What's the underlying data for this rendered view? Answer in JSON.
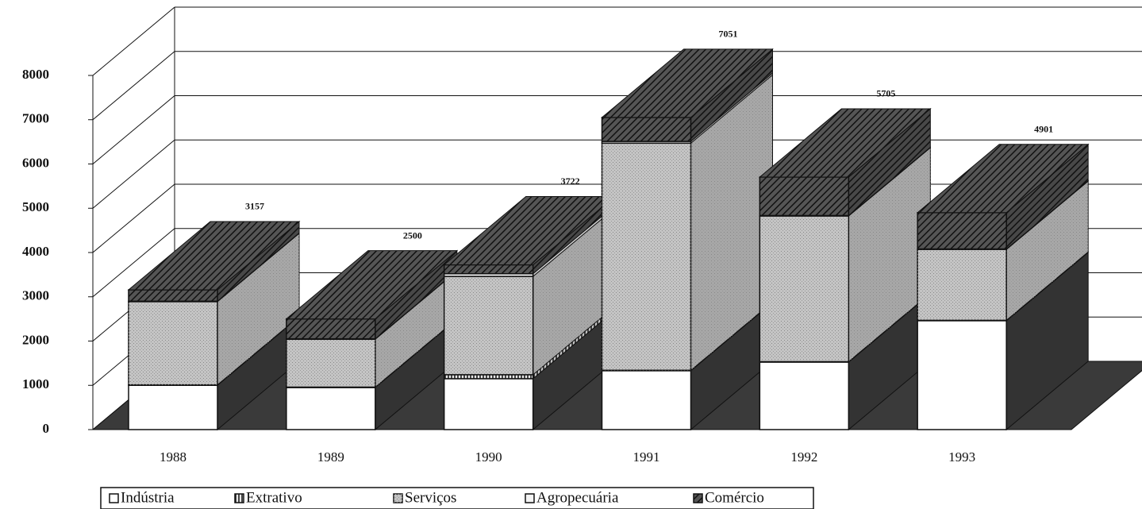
{
  "chart_data": {
    "type": "bar3d_stacked",
    "categories": [
      "1988",
      "1989",
      "1990",
      "1991",
      "1992",
      "1993"
    ],
    "series": [
      {
        "name": "Indústria",
        "color": "#ffffff",
        "values": [
          1000,
          950,
          1150,
          1330,
          1525,
          2460
        ]
      },
      {
        "name": "Extrativo",
        "color": "#e8e8e8",
        "values": [
          10,
          10,
          90,
          10,
          10,
          10
        ]
      },
      {
        "name": "Serviços",
        "color": "#c4c4c4",
        "values": [
          1880,
          1080,
          2220,
          5130,
          3290,
          1600
        ]
      },
      {
        "name": "Agropecuária",
        "color": "#f4f4f4",
        "values": [
          10,
          10,
          60,
          40,
          10,
          10
        ]
      },
      {
        "name": "Comércio",
        "color": "#555555",
        "values": [
          257,
          450,
          202,
          541,
          870,
          821
        ]
      }
    ],
    "totals": [
      3157,
      2500,
      3722,
      7051,
      5705,
      4901
    ],
    "ylim": [
      0,
      8000
    ],
    "yticks": [
      0,
      1000,
      2000,
      3000,
      4000,
      5000,
      6000,
      7000,
      8000
    ],
    "grid": true
  }
}
